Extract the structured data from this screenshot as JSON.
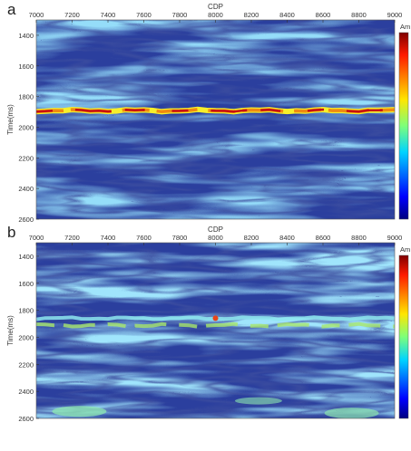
{
  "chart_data": [
    {
      "type": "heatmap",
      "panel_label": "a",
      "x_label": "CDP",
      "y_label": "Time(ms)",
      "colorbar_label": "Am",
      "xlim": [
        7000,
        9000
      ],
      "xticks": [
        7000,
        7200,
        7400,
        7600,
        7800,
        8000,
        8200,
        8400,
        8600,
        8800,
        9000
      ],
      "ylim": [
        1300,
        2600
      ],
      "yticks": [
        1400,
        1600,
        1800,
        2000,
        2200,
        2400,
        2600
      ]
    },
    {
      "type": "heatmap",
      "panel_label": "b",
      "x_label": "CDP",
      "y_label": "Time(ms)",
      "colorbar_label": "Am",
      "xlim": [
        7000,
        9000
      ],
      "xticks": [
        7000,
        7200,
        7400,
        7600,
        7800,
        8000,
        8200,
        8400,
        8600,
        8800,
        9000
      ],
      "ylim": [
        1300,
        2600
      ],
      "yticks": [
        1400,
        1600,
        1800,
        2000,
        2200,
        2400,
        2600
      ]
    }
  ]
}
